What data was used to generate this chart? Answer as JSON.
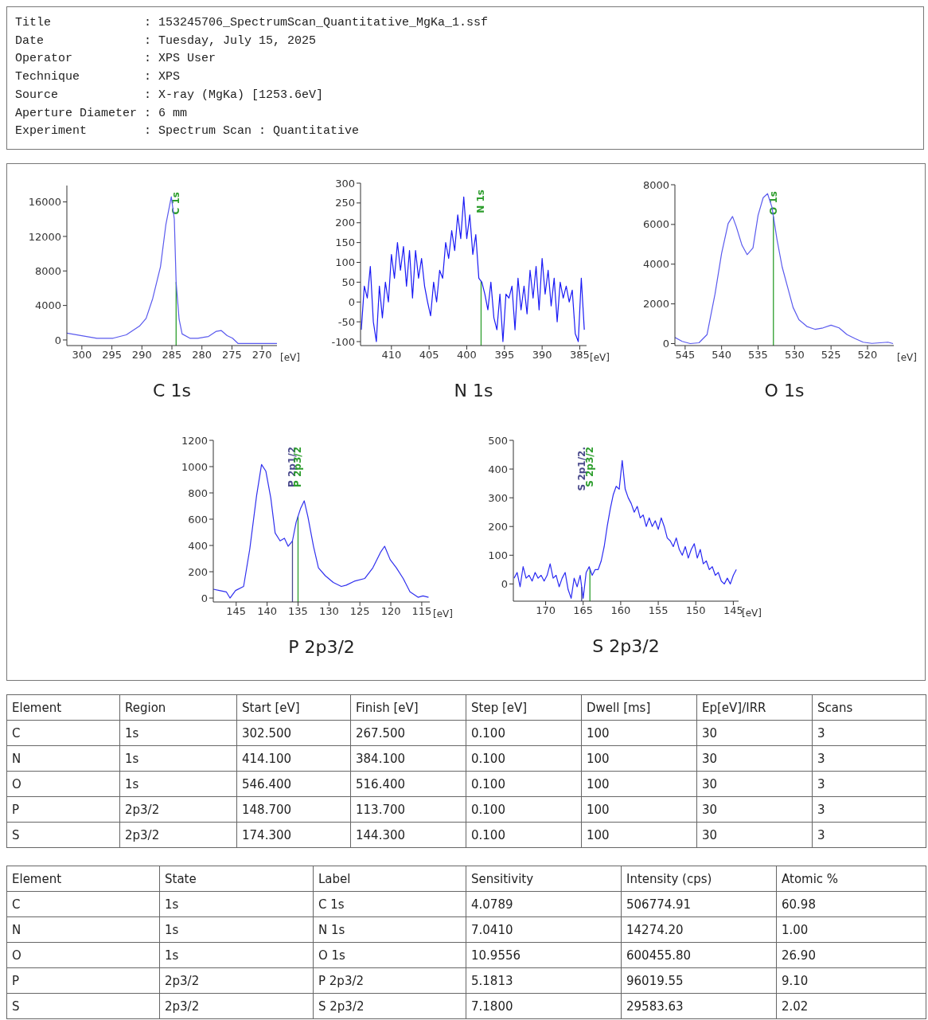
{
  "chart_data": [
    {
      "type": "other",
      "annotations": [
        "Title             : 153245706_SpectrumScan_Quantitative_MgKa_1.ssf",
        "Date              : Tuesday, July 15, 2025",
        "Operator          : XPS User",
        "Technique         : XPS",
        "Source            : X-ray (MgKa) [1253.6eV]",
        "Aperture Diameter : 6 mm",
        "Experiment        : Spectrum Scan : Quantitative"
      ]
    },
    {
      "type": "line",
      "title": "C 1s",
      "xlabel": "[eV]",
      "x": [
        302.5,
        300,
        297.5,
        294.8,
        292.6,
        290.4,
        289.3,
        288.2,
        286.9,
        286,
        285.1,
        284.6,
        284.3,
        283.8,
        283.3,
        282,
        280.7,
        278.9,
        277.6,
        276.8,
        275.8,
        274.9,
        274,
        271,
        267.5
      ],
      "series": [
        {
          "color": "#5a5aee",
          "values": [
            800,
            500,
            200,
            200,
            600,
            1600,
            2500,
            4800,
            8500,
            13400,
            16600,
            14000,
            6700,
            2400,
            700,
            200,
            200,
            400,
            1000,
            1100,
            500,
            200,
            -400,
            -400,
            -400
          ]
        }
      ],
      "xlim": [
        302.5,
        267.5
      ],
      "xticks": [
        300,
        295,
        290,
        285,
        280,
        275,
        270
      ],
      "ylim": [
        -650,
        17900
      ],
      "yticks": [
        0,
        4000,
        8000,
        12000,
        16000
      ],
      "ref_lines": [
        {
          "axis": "x",
          "value": 284.3,
          "label": "C 1s",
          "color": "#2e9e2e"
        }
      ]
    },
    {
      "type": "line",
      "title": "N 1s",
      "xlabel": "[eV]",
      "x": [
        414.0,
        413.6,
        413.2,
        412.8,
        412.4,
        412.0,
        411.6,
        411.2,
        410.8,
        410.4,
        410.0,
        409.6,
        409.2,
        408.8,
        408.4,
        408.0,
        407.6,
        407.2,
        406.8,
        406.4,
        406.0,
        405.6,
        405.2,
        404.8,
        404.4,
        404.0,
        403.6,
        403.2,
        402.8,
        402.4,
        402.0,
        401.6,
        401.2,
        400.8,
        400.4,
        400.0,
        399.6,
        399.2,
        398.8,
        398.4,
        398.0,
        397.6,
        397.2,
        396.8,
        396.4,
        396.0,
        395.6,
        395.2,
        394.8,
        394.4,
        394.0,
        393.6,
        393.2,
        392.8,
        392.4,
        392.0,
        391.6,
        391.2,
        390.8,
        390.4,
        390.0,
        389.6,
        389.2,
        388.8,
        388.4,
        388.0,
        387.6,
        387.2,
        386.8,
        386.4,
        386.0,
        385.6,
        385.2,
        384.8,
        384.4
      ],
      "series": [
        {
          "color": "#1a1af5",
          "values": [
            -70,
            40,
            10,
            90,
            -50,
            -100,
            40,
            -40,
            50,
            0,
            120,
            60,
            150,
            80,
            140,
            40,
            130,
            10,
            130,
            60,
            110,
            40,
            0,
            -35,
            50,
            0,
            80,
            60,
            150,
            110,
            180,
            130,
            220,
            160,
            265,
            160,
            220,
            120,
            170,
            60,
            50,
            20,
            -20,
            50,
            -40,
            -70,
            20,
            -100,
            20,
            10,
            40,
            -70,
            60,
            -20,
            40,
            -30,
            80,
            10,
            90,
            -20,
            110,
            20,
            80,
            -10,
            60,
            -50,
            50,
            10,
            40,
            0,
            30,
            -80,
            -100,
            60,
            -70
          ]
        }
      ],
      "xlim": [
        414.1,
        384.1
      ],
      "xticks": [
        410,
        405,
        400,
        395,
        390,
        385
      ],
      "ylim": [
        -110,
        300
      ],
      "yticks": [
        -100,
        -50,
        0,
        50,
        100,
        150,
        200,
        250,
        300
      ],
      "ref_lines": [
        {
          "axis": "x",
          "value": 398.1,
          "label": "N 1s",
          "color": "#2e9e2e"
        }
      ]
    },
    {
      "type": "line",
      "title": "O 1s",
      "xlabel": "[eV]",
      "x": [
        546.4,
        545.4,
        544.3,
        543.1,
        542,
        540.9,
        540,
        539.1,
        538.5,
        538,
        537.2,
        536.5,
        535.7,
        535,
        534.3,
        533.7,
        533.1,
        532.4,
        531.7,
        530.9,
        530.2,
        529.4,
        528.3,
        527.2,
        526.1,
        525,
        523.9,
        522.8,
        521.7,
        520.6,
        519.4,
        518.3,
        517.2,
        516.5
      ],
      "series": [
        {
          "color": "#5a5aee",
          "values": [
            310,
            110,
            0,
            40,
            450,
            2500,
            4550,
            6050,
            6400,
            5900,
            4950,
            4480,
            4820,
            6460,
            7350,
            7550,
            6870,
            5230,
            3860,
            2770,
            1820,
            1200,
            860,
            720,
            790,
            930,
            790,
            450,
            250,
            70,
            10,
            40,
            70,
            0
          ]
        }
      ],
      "xlim": [
        546.4,
        516.4
      ],
      "xticks": [
        545,
        540,
        535,
        530,
        525,
        520
      ],
      "ylim": [
        -100,
        8000
      ],
      "yticks": [
        0,
        2000,
        4000,
        6000,
        8000
      ],
      "ref_lines": [
        {
          "axis": "x",
          "value": 532.9,
          "label": "O 1s",
          "color": "#2e9e2e"
        }
      ]
    },
    {
      "type": "line",
      "title": "P 2p3/2",
      "xlabel": "[eV]",
      "x": [
        148.7,
        147.7,
        146.6,
        146,
        145.1,
        143.8,
        142.8,
        141.7,
        140.9,
        140.2,
        139.4,
        138.7,
        137.9,
        137.2,
        136.6,
        135.9,
        135.3,
        134.6,
        134,
        133.4,
        132.5,
        131.7,
        130.6,
        129.3,
        128,
        127.2,
        125.9,
        124.2,
        122.9,
        121.6,
        121,
        120.1,
        119.1,
        118,
        116.9,
        115.6,
        114.8,
        113.9
      ],
      "series": [
        {
          "color": "#3030ee",
          "values": [
            67,
            57,
            47,
            0,
            57,
            88,
            373,
            780,
            1016,
            965,
            760,
            495,
            435,
            455,
            394,
            435,
            578,
            680,
            740,
            618,
            394,
            230,
            170,
            118,
            88,
            98,
            128,
            149,
            230,
            353,
            394,
            292,
            230,
            149,
            47,
            6,
            16,
            6
          ]
        }
      ],
      "xlim": [
        148.7,
        113.7
      ],
      "xticks": [
        145,
        140,
        135,
        130,
        125,
        120,
        115
      ],
      "ylim": [
        -30,
        1200
      ],
      "yticks": [
        0,
        200,
        400,
        600,
        800,
        1000,
        1200
      ],
      "ref_lines": [
        {
          "axis": "x",
          "value": 135.9,
          "label": "P 2p1/2",
          "color": "#4b4b8c"
        },
        {
          "axis": "x",
          "value": 135.0,
          "label": "P 2p3/2",
          "color": "#2e9e2e"
        }
      ]
    },
    {
      "type": "line",
      "title": "S 2p3/2",
      "xlabel": "[eV]",
      "x": [
        174.2,
        173.8,
        173.4,
        173.0,
        172.6,
        172.2,
        171.8,
        171.4,
        171.0,
        170.6,
        170.2,
        169.8,
        169.4,
        169.0,
        168.6,
        168.2,
        167.8,
        167.4,
        167.0,
        166.6,
        166.2,
        165.8,
        165.4,
        165.0,
        164.6,
        164.2,
        163.8,
        163.4,
        163.0,
        162.6,
        162.2,
        161.8,
        161.4,
        161.0,
        160.6,
        160.2,
        159.8,
        159.4,
        159.0,
        158.6,
        158.2,
        157.8,
        157.4,
        157.0,
        156.6,
        156.2,
        155.8,
        155.4,
        155.0,
        154.6,
        154.2,
        153.8,
        153.4,
        153.0,
        152.6,
        152.2,
        151.8,
        151.4,
        151.0,
        150.6,
        150.2,
        149.8,
        149.4,
        149.0,
        148.6,
        148.2,
        147.8,
        147.4,
        147.0,
        146.6,
        146.2,
        145.8,
        145.4,
        145.0,
        144.6
      ],
      "series": [
        {
          "color": "#2a2af2",
          "values": [
            20,
            40,
            -10,
            60,
            20,
            30,
            10,
            40,
            20,
            30,
            10,
            30,
            70,
            20,
            30,
            -10,
            20,
            40,
            -20,
            -50,
            20,
            -10,
            30,
            -50,
            40,
            60,
            30,
            50,
            50,
            80,
            130,
            200,
            260,
            310,
            340,
            330,
            430,
            330,
            300,
            280,
            250,
            270,
            230,
            240,
            200,
            230,
            200,
            220,
            190,
            230,
            200,
            160,
            150,
            130,
            160,
            120,
            100,
            130,
            90,
            120,
            140,
            90,
            120,
            70,
            80,
            50,
            60,
            30,
            40,
            10,
            0,
            20,
            0,
            30,
            50
          ]
        }
      ],
      "xlim": [
        174.3,
        144.3
      ],
      "xticks": [
        170,
        165,
        160,
        155,
        150,
        145
      ],
      "ylim": [
        -60,
        500
      ],
      "yticks": [
        0,
        100,
        200,
        300,
        400,
        500
      ],
      "ref_lines": [
        {
          "axis": "x",
          "value": 165.2,
          "label": "S 2p1/2.",
          "color": "#4b4b8c"
        },
        {
          "axis": "x",
          "value": 164.1,
          "label": "S 2p3/2",
          "color": "#2e9e2e"
        }
      ]
    },
    {
      "type": "other",
      "categories": [
        "Element",
        "Region",
        "Start [eV]",
        "Finish [eV]",
        "Step [eV]",
        "Dwell [ms]",
        "Ep[eV]/IRR",
        "Scans"
      ],
      "cell_labels": [
        [
          "C",
          "1s",
          "302.500",
          "267.500",
          "0.100",
          "100",
          "30",
          "3"
        ],
        [
          "N",
          "1s",
          "414.100",
          "384.100",
          "0.100",
          "100",
          "30",
          "3"
        ],
        [
          "O",
          "1s",
          "546.400",
          "516.400",
          "0.100",
          "100",
          "30",
          "3"
        ],
        [
          "P",
          "2p3/2",
          "148.700",
          "113.700",
          "0.100",
          "100",
          "30",
          "3"
        ],
        [
          "S",
          "2p3/2",
          "174.300",
          "144.300",
          "0.100",
          "100",
          "30",
          "3"
        ]
      ]
    },
    {
      "type": "other",
      "categories": [
        "Element",
        "State",
        "Label",
        "Sensitivity",
        "Intensity (cps)",
        "Atomic %"
      ],
      "cell_labels": [
        [
          "C",
          "1s",
          "C 1s",
          "4.0789",
          "506774.91",
          "60.98"
        ],
        [
          "N",
          "1s",
          "N 1s",
          "7.0410",
          "14274.20",
          "1.00"
        ],
        [
          "O",
          "1s",
          "O 1s",
          "10.9556",
          "600455.80",
          "26.90"
        ],
        [
          "P",
          "2p3/2",
          "P 2p3/2",
          "5.1813",
          "96019.55",
          "9.10"
        ],
        [
          "S",
          "2p3/2",
          "S 2p3/2",
          "7.1800",
          "29583.63",
          "2.02"
        ]
      ]
    }
  ]
}
